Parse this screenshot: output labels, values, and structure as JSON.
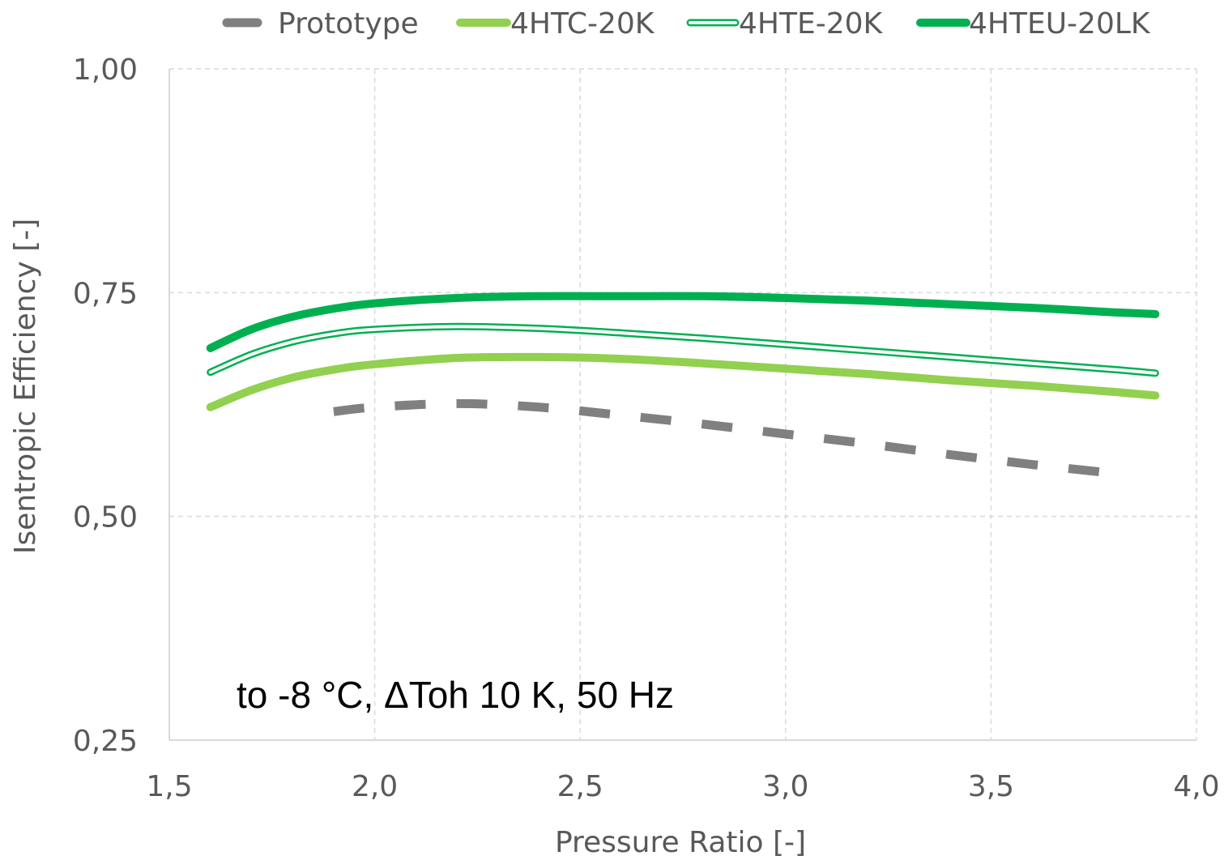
{
  "chart_data": {
    "type": "line",
    "title": "",
    "xlabel": "Pressure Ratio [-]",
    "ylabel": "Isentropic Efficiency [-]",
    "xlim": [
      1.5,
      4.0
    ],
    "ylim": [
      0.25,
      1.0
    ],
    "x_ticks": [
      1.5,
      2.0,
      2.5,
      3.0,
      3.5,
      4.0
    ],
    "x_tick_labels": [
      "1,5",
      "2,0",
      "2,5",
      "3,0",
      "3,5",
      "4,0"
    ],
    "y_ticks": [
      0.25,
      0.5,
      0.75,
      1.0
    ],
    "y_tick_labels": [
      "0,25",
      "0,50",
      "0,75",
      "1,00"
    ],
    "grid": true,
    "legend_position": "top",
    "annotation": "to -8 °C, ΔToh 10 K, 50 Hz",
    "series": [
      {
        "name": "Prototype",
        "color": "#808080",
        "style": "dashed",
        "x": [
          1.9,
          2.0,
          2.2,
          2.4,
          2.6,
          2.8,
          3.0,
          3.2,
          3.4,
          3.6,
          3.8
        ],
        "values": [
          0.617,
          0.622,
          0.626,
          0.622,
          0.613,
          0.603,
          0.592,
          0.581,
          0.569,
          0.558,
          0.548
        ]
      },
      {
        "name": "4HTC-20K",
        "color": "#92d050",
        "style": "solid",
        "x": [
          1.6,
          1.7,
          1.8,
          1.9,
          2.0,
          2.2,
          2.4,
          2.6,
          2.8,
          3.0,
          3.2,
          3.4,
          3.6,
          3.8,
          3.9
        ],
        "values": [
          0.622,
          0.641,
          0.655,
          0.664,
          0.67,
          0.677,
          0.678,
          0.676,
          0.671,
          0.665,
          0.659,
          0.652,
          0.646,
          0.639,
          0.635
        ]
      },
      {
        "name": "4HTE-20K",
        "color": "#00b050",
        "style": "double",
        "x": [
          1.6,
          1.7,
          1.8,
          1.9,
          2.0,
          2.2,
          2.4,
          2.6,
          2.8,
          3.0,
          3.2,
          3.4,
          3.6,
          3.8,
          3.9
        ],
        "values": [
          0.661,
          0.681,
          0.695,
          0.704,
          0.709,
          0.712,
          0.71,
          0.705,
          0.699,
          0.692,
          0.685,
          0.678,
          0.671,
          0.664,
          0.66
        ]
      },
      {
        "name": "4HTEU-20LK",
        "color": "#00b050",
        "style": "solid-thick",
        "x": [
          1.6,
          1.7,
          1.8,
          1.9,
          2.0,
          2.2,
          2.4,
          2.6,
          2.8,
          3.0,
          3.2,
          3.4,
          3.6,
          3.8,
          3.9
        ],
        "values": [
          0.688,
          0.709,
          0.723,
          0.732,
          0.738,
          0.744,
          0.746,
          0.746,
          0.746,
          0.744,
          0.741,
          0.737,
          0.733,
          0.728,
          0.726
        ]
      }
    ]
  }
}
